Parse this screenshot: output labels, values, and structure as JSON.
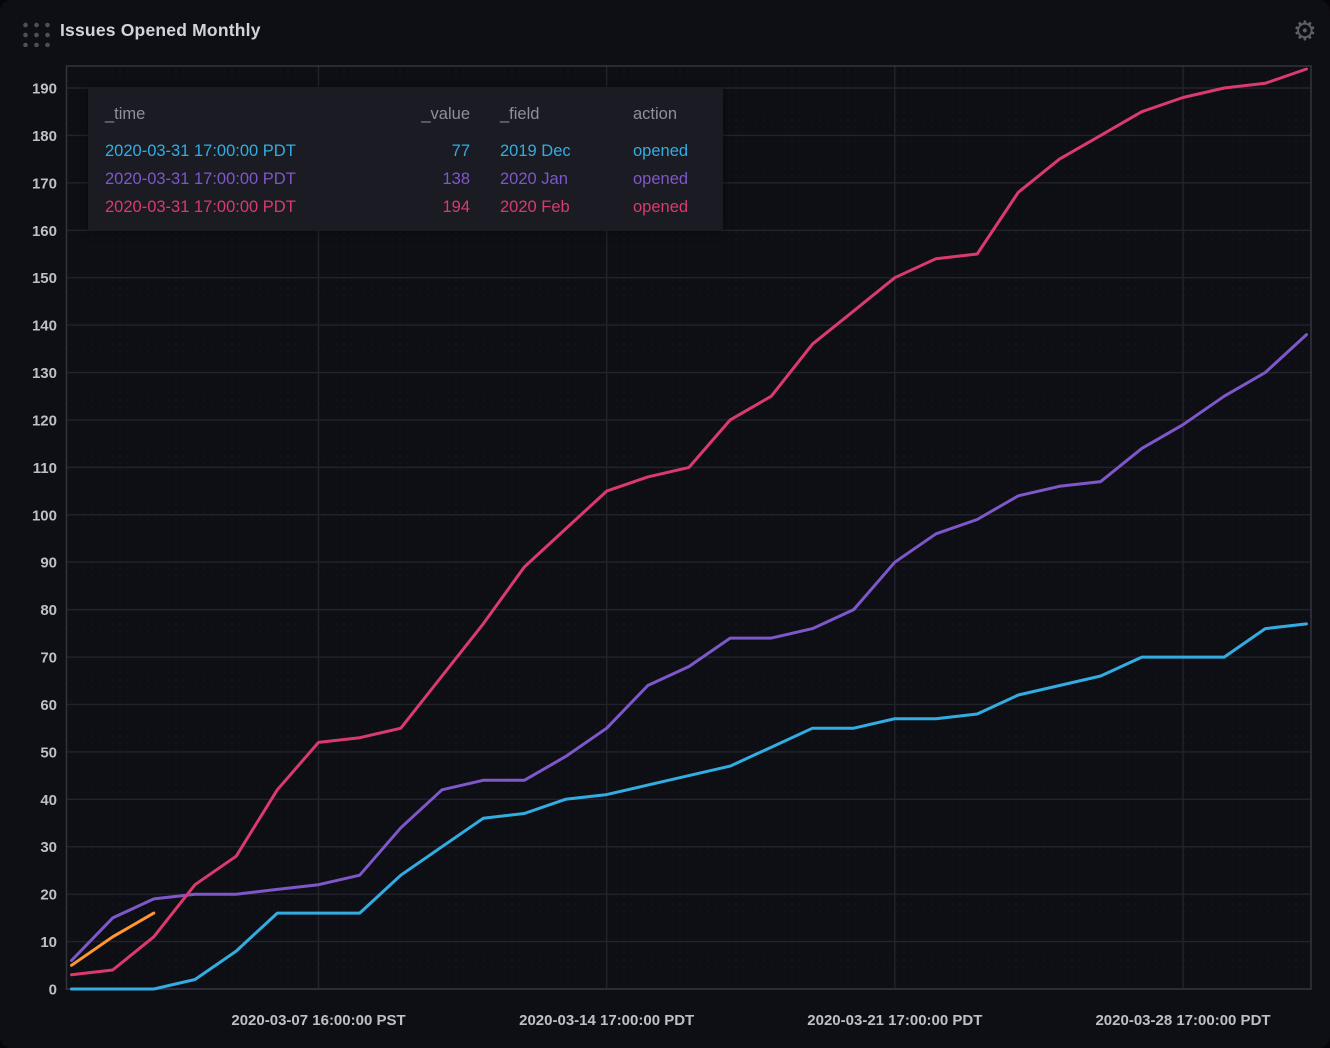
{
  "panel": {
    "title": "Issues Opened Monthly",
    "icons": {
      "drag_handle": "grid-dots-icon",
      "settings": "gear-icon"
    }
  },
  "colors": {
    "background": "#0E0E15",
    "grid": "#23232C",
    "border": "#32323C",
    "axis_text": "#BDC0C7",
    "tooltip_bg": "#1B1B24",
    "tooltip_header_text": "#8F8F9A",
    "cyan": "#33ADE1",
    "purple": "#7E57C8",
    "pink": "#DA3A6E",
    "orange": "#FF9830"
  },
  "tooltip": {
    "headers": [
      "_time",
      "_value",
      "_field",
      "action"
    ],
    "rows": [
      {
        "_time": "2020-03-31 17:00:00 PDT",
        "_value": "77",
        "_field": "2019 Dec",
        "action": "opened",
        "color": "#33ADE1"
      },
      {
        "_time": "2020-03-31 17:00:00 PDT",
        "_value": "138",
        "_field": "2020 Jan",
        "action": "opened",
        "color": "#7E57C8"
      },
      {
        "_time": "2020-03-31 17:00:00 PDT",
        "_value": "194",
        "_field": "2020 Feb",
        "action": "opened",
        "color": "#DA3A6E"
      }
    ]
  },
  "chart_data": {
    "type": "line",
    "title": "Issues Opened Monthly",
    "x_unit": "days of March 2020, one point per day at 17:00",
    "x": [
      1,
      2,
      3,
      4,
      5,
      6,
      7,
      8,
      9,
      10,
      11,
      12,
      13,
      14,
      15,
      16,
      17,
      18,
      19,
      20,
      21,
      22,
      23,
      24,
      25,
      26,
      27,
      28,
      29,
      30,
      31
    ],
    "y_ticks": [
      0,
      10,
      20,
      30,
      40,
      50,
      60,
      70,
      80,
      90,
      100,
      110,
      120,
      130,
      140,
      150,
      160,
      170,
      180,
      190
    ],
    "ylim": [
      0,
      196
    ],
    "grid": true,
    "legend_position": "none",
    "x_ticks": [
      {
        "day": 7,
        "label": "2020-03-07 16:00:00 PST"
      },
      {
        "day": 14,
        "label": "2020-03-14 17:00:00 PDT"
      },
      {
        "day": 21,
        "label": "2020-03-21 17:00:00 PDT"
      },
      {
        "day": 28,
        "label": "2020-03-28 17:00:00 PDT"
      }
    ],
    "series": [
      {
        "name": "2019 Dec",
        "action": "opened",
        "color": "#33ADE1",
        "values": [
          0,
          0,
          0,
          2,
          8,
          16,
          16,
          16,
          24,
          30,
          36,
          37,
          40,
          41,
          43,
          45,
          47,
          51,
          55,
          55,
          57,
          57,
          58,
          62,
          64,
          66,
          70,
          70,
          70,
          76,
          77
        ]
      },
      {
        "name": "2020 Jan",
        "action": "opened",
        "color": "#7E57C8",
        "values": [
          6,
          15,
          19,
          20,
          20,
          21,
          22,
          24,
          34,
          42,
          44,
          44,
          49,
          55,
          64,
          68,
          74,
          74,
          76,
          80,
          90,
          96,
          99,
          104,
          106,
          107,
          114,
          119,
          125,
          130,
          138
        ]
      },
      {
        "name": "2020 Feb",
        "action": "opened",
        "color": "#DA3A6E",
        "values": [
          3,
          4,
          11,
          22,
          28,
          42,
          52,
          53,
          55,
          66,
          77,
          89,
          97,
          105,
          108,
          110,
          120,
          125,
          136,
          143,
          150,
          154,
          155,
          168,
          175,
          180,
          185,
          188,
          190,
          191,
          194
        ]
      },
      {
        "name": "",
        "action": "",
        "color": "#FF9830",
        "x": [
          1,
          2,
          3
        ],
        "values": [
          5,
          11,
          16
        ]
      }
    ]
  }
}
